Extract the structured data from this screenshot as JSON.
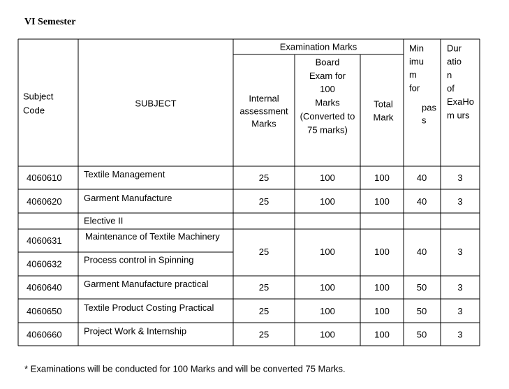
{
  "title": "VI Semester",
  "table": {
    "header": {
      "subject_code": [
        "Subject",
        "Code"
      ],
      "subject": "SUBJECT",
      "examination_marks": "Examination Marks",
      "internal": [
        "Internal",
        "assessment",
        "Marks"
      ],
      "board": [
        "Board",
        "Exam for",
        "100",
        "Marks",
        "(Converted to",
        "75 marks)"
      ],
      "total": [
        "Total",
        "Mark"
      ],
      "minimum": [
        "Min",
        "imu",
        "m",
        "for",
        "pas",
        "s"
      ],
      "duration": [
        "Dur",
        "atio",
        "n",
        "of",
        "ExaHo",
        "m  urs"
      ]
    },
    "rows": [
      [
        "4060610",
        "Textile Management",
        25,
        100,
        100,
        40,
        3
      ],
      [
        "4060620",
        "Garment Manufacture",
        25,
        100,
        100,
        40,
        3
      ],
      {
        "heading": "Elective II",
        "items": [
          [
            "4060631",
            "Maintenance of Textile Machinery"
          ],
          [
            "4060632",
            "Process control in Spinning"
          ]
        ],
        "marks": [
          25,
          100,
          100,
          40,
          3
        ]
      },
      [
        "4060640",
        "Garment Manufacture practical",
        25,
        100,
        100,
        50,
        3
      ],
      [
        "4060650",
        "Textile Product Costing Practical",
        25,
        100,
        100,
        50,
        3
      ],
      [
        "4060660",
        "Project Work & Internship",
        25,
        100,
        100,
        50,
        3
      ]
    ]
  },
  "footnote": "* Examinations will be conducted  for 100 Marks and will be converted 75 Marks."
}
